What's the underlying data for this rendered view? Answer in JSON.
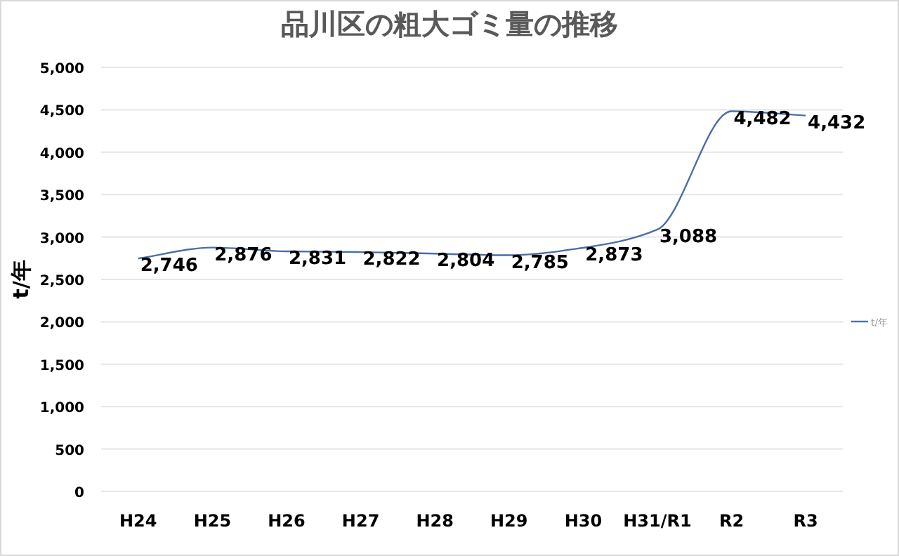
{
  "chart_data": {
    "type": "line",
    "title": "品川区の粗大ゴミ量の推移",
    "ylabel": "t/年",
    "categories": [
      "H24",
      "H25",
      "H26",
      "H27",
      "H28",
      "H29",
      "H30",
      "H31/R1",
      "R2",
      "R3"
    ],
    "series": [
      {
        "name": "t/年",
        "color": "#4a6fa5",
        "values": [
          2746,
          2876,
          2831,
          2822,
          2804,
          2785,
          2873,
          3088,
          4482,
          4432
        ],
        "value_labels": [
          "2,746",
          "2,876",
          "2,831",
          "2,822",
          "2,804",
          "2,785",
          "2,873",
          "3,088",
          "4,482",
          "4,432"
        ]
      }
    ],
    "ylim": [
      0,
      5000
    ],
    "yticks": [
      {
        "value": 0,
        "label": "0"
      },
      {
        "value": 500,
        "label": "500"
      },
      {
        "value": 1000,
        "label": "1,000"
      },
      {
        "value": 1500,
        "label": "1,500"
      },
      {
        "value": 2000,
        "label": "2,000"
      },
      {
        "value": 2500,
        "label": "2,500"
      },
      {
        "value": 3000,
        "label": "3,000"
      },
      {
        "value": 3500,
        "label": "3,500"
      },
      {
        "value": 4000,
        "label": "4,000"
      },
      {
        "value": 4500,
        "label": "4,500"
      },
      {
        "value": 5000,
        "label": "5,000"
      }
    ],
    "grid": "y",
    "legend": "right"
  }
}
